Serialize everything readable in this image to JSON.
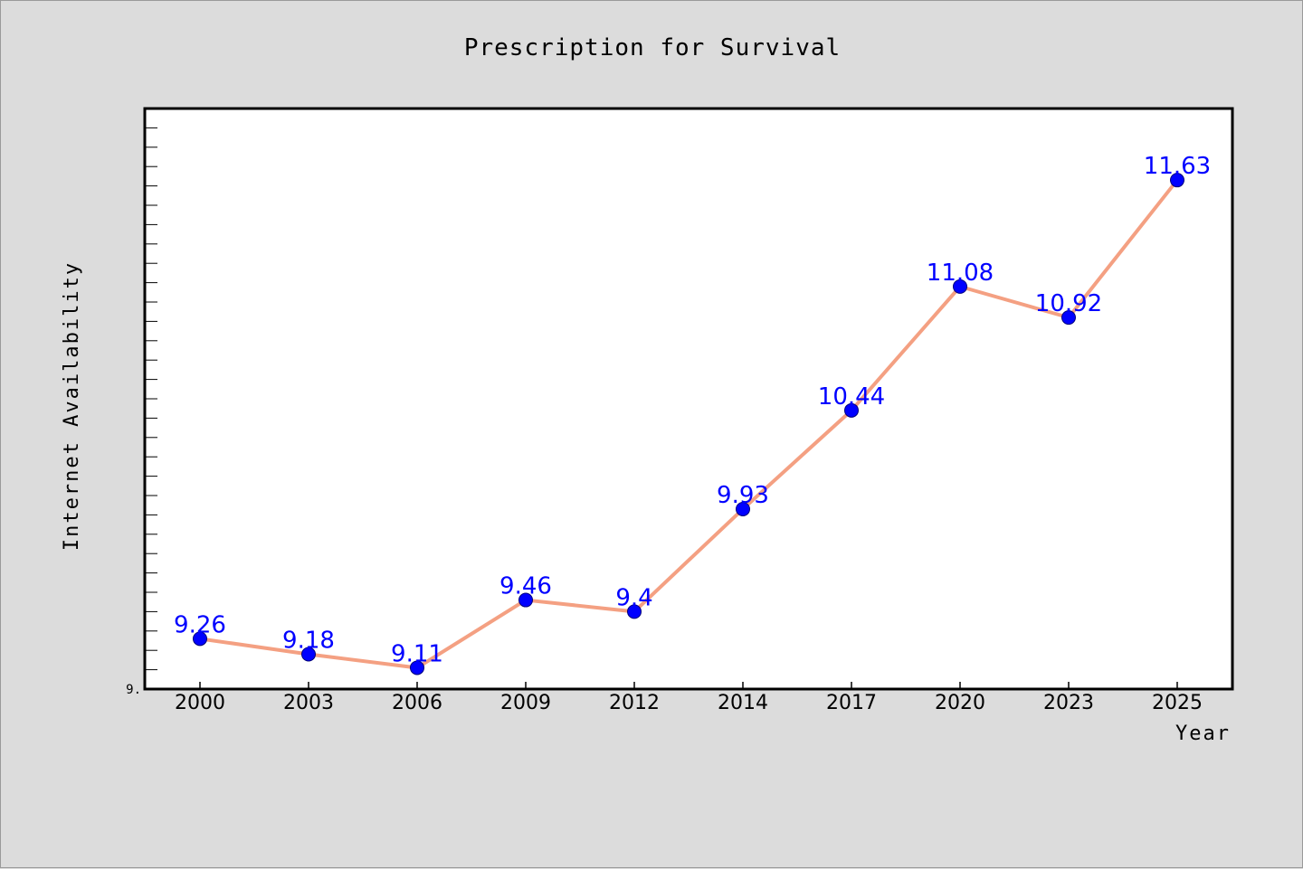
{
  "chart_data": {
    "type": "line",
    "title": "Prescription for Survival",
    "xlabel": "Year",
    "ylabel": "Internet Availability",
    "categories": [
      "2000",
      "2003",
      "2006",
      "2009",
      "2012",
      "2014",
      "2017",
      "2020",
      "2023",
      "2025"
    ],
    "series": [
      {
        "values": [
          9.26,
          9.18,
          9.11,
          9.46,
          9.4,
          9.93,
          10.44,
          11.08,
          10.92,
          11.63
        ],
        "labels": [
          "9.26",
          "9.18",
          "9.11",
          "9.46",
          "9.4",
          "9.93",
          "10.44",
          "11.08",
          "10.92",
          "11.63"
        ]
      }
    ],
    "y_axis_label": "9.",
    "ylim": [
      9.0,
      12.0
    ],
    "line_color": "#f4a082",
    "marker_color": "#0000ff",
    "label_color": "#0000ff",
    "grid": false
  }
}
